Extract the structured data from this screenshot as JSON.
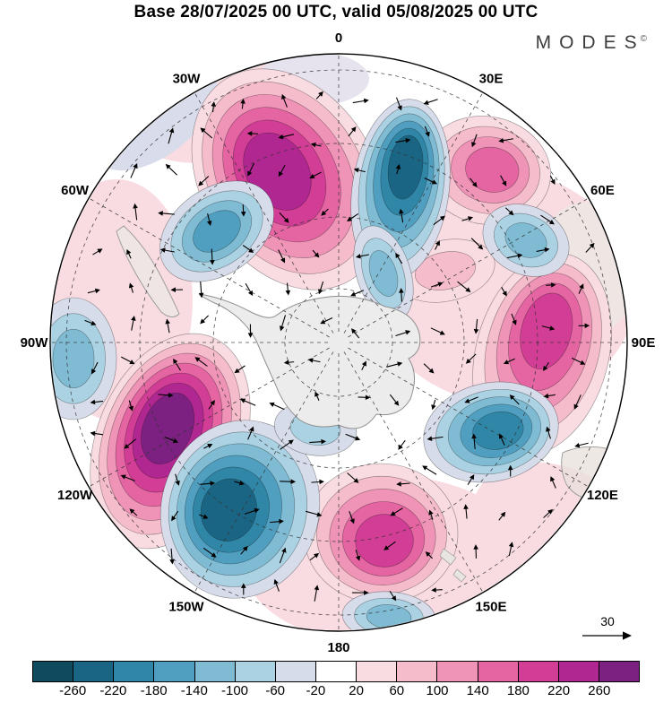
{
  "header": {
    "title": "Base 28/07/2025 00 UTC, valid 05/08/2025 00 UTC",
    "logo_text": "MODES",
    "logo_mark": "©"
  },
  "chart_data": {
    "type": "heatmap",
    "projection": "south-polar-stereographic",
    "title": "Base 28/07/2025 00 UTC, valid 05/08/2025 00 UTC",
    "base_time": "28/07/2025 00 UTC",
    "valid_time": "05/08/2025 00 UTC",
    "field_description": "Anomaly field (shaded) with wind vector arrows over the Southern Hemisphere",
    "meridian_labels": [
      {
        "text": "0",
        "deg": 0
      },
      {
        "text": "30E",
        "deg": 30
      },
      {
        "text": "60E",
        "deg": 60
      },
      {
        "text": "90E",
        "deg": 90
      },
      {
        "text": "120E",
        "deg": 120
      },
      {
        "text": "150E",
        "deg": 150
      },
      {
        "text": "180",
        "deg": 180
      },
      {
        "text": "150W",
        "deg": 210
      },
      {
        "text": "120W",
        "deg": 240
      },
      {
        "text": "90W",
        "deg": 270
      },
      {
        "text": "60W",
        "deg": 300
      },
      {
        "text": "30W",
        "deg": 330
      }
    ],
    "colorbar": {
      "tick_labels": [
        "-260",
        "-220",
        "-180",
        "-140",
        "-100",
        "-60",
        "-20",
        "20",
        "60",
        "100",
        "140",
        "180",
        "220",
        "260"
      ],
      "cell_colors": [
        "#0f4a5e",
        "#1b6584",
        "#2f86a7",
        "#519fc0",
        "#7fbcd4",
        "#abd2e2",
        "#d6dcea",
        "#ffffff",
        "#f9dce2",
        "#f5bccb",
        "#ef93b7",
        "#e465a2",
        "#d23d95",
        "#b02791",
        "#7c2182"
      ]
    },
    "reference_vector": {
      "label": "30"
    },
    "anomaly_centers": [
      {
        "sign": "positive",
        "sector": "near 30W mid-latitudes (upper left)",
        "intensity": "strong, >220"
      },
      {
        "sign": "positive",
        "sector": "near 120W (lower left)",
        "intensity": "strong, >260"
      },
      {
        "sign": "positive",
        "sector": "near 60E (right)",
        "intensity": "moderate, 100-180"
      },
      {
        "sign": "positive",
        "sector": "near 180 (bottom center)",
        "intensity": "moderate, 100-140"
      },
      {
        "sign": "negative",
        "sector": "near 0-15E (top center)",
        "intensity": "strong, < -180"
      },
      {
        "sign": "negative",
        "sector": "near 150W (lower left of center)",
        "intensity": "strong, < -180"
      },
      {
        "sign": "negative",
        "sector": "near 110E (right of center)",
        "intensity": "moderate, -100 to -180"
      },
      {
        "sign": "negative",
        "sector": "near 45W mid-latitudes",
        "intensity": "moderate, -60 to -140"
      }
    ]
  }
}
